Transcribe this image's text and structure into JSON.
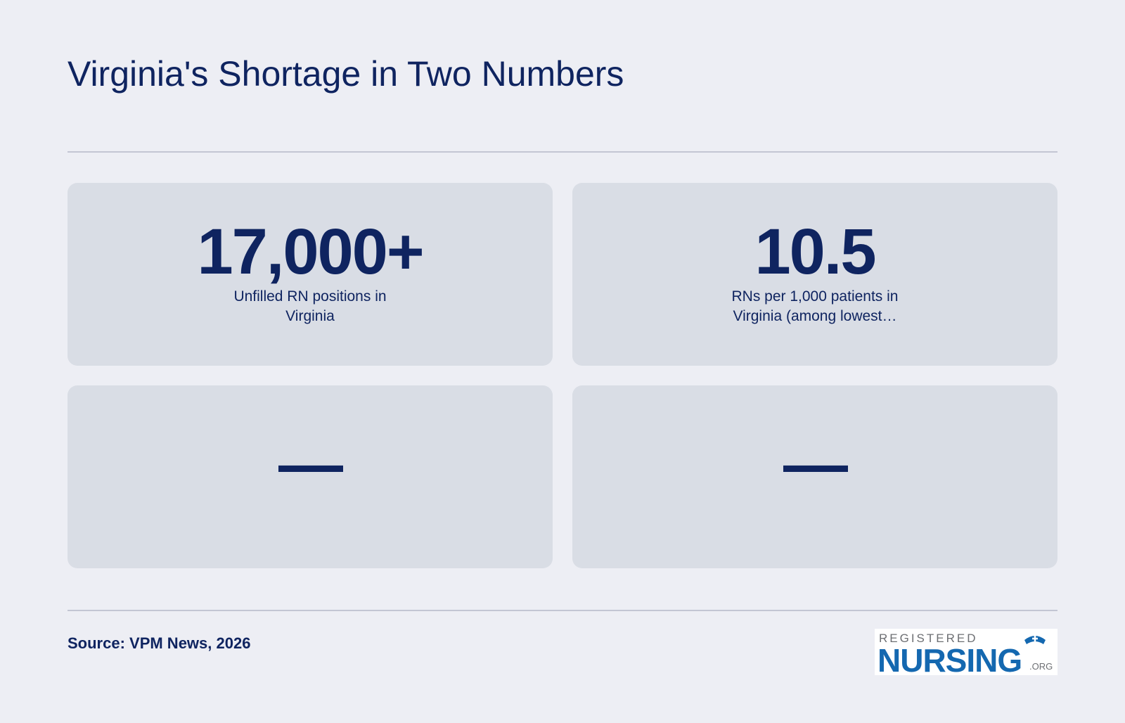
{
  "header": {
    "title": "Virginia's Shortage in Two Numbers"
  },
  "cards": [
    {
      "value": "17,000+",
      "label": "Unfilled RN positions in Virginia"
    },
    {
      "value": "10.5",
      "label": "RNs per 1,000 patients in Virginia (among lowest…"
    },
    {
      "value": "—"
    },
    {
      "value": "—"
    }
  ],
  "footer": {
    "source": "Source: VPM News, 2026",
    "logo": {
      "top": "REGISTERED",
      "main": "NURSING",
      "suffix": ".ORG"
    }
  }
}
